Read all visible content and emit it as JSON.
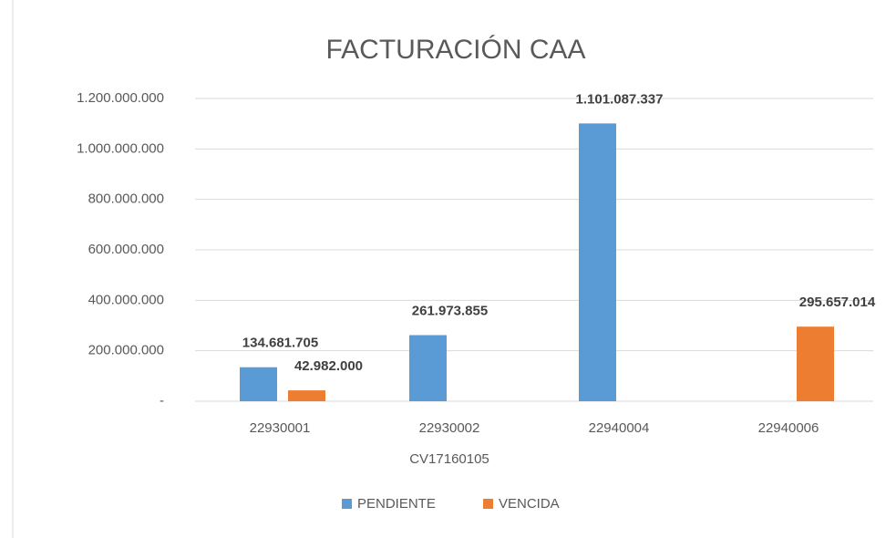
{
  "chart_data": {
    "type": "bar",
    "title": "FACTURACIÓN CAA",
    "categories": [
      "22930001",
      "22930002\nCV17160105",
      "22940004",
      "22940006"
    ],
    "series": [
      {
        "name": "PENDIENTE",
        "color": "#5b9bd5",
        "values": [
          134681705,
          261973855,
          1101087337,
          null
        ],
        "value_labels": [
          "134.681.705",
          "261.973.855",
          "1.101.087.337",
          null
        ]
      },
      {
        "name": "VENCIDA",
        "color": "#ed7d31",
        "values": [
          42982000,
          null,
          null,
          295657014
        ],
        "value_labels": [
          "42.982.000",
          null,
          null,
          "295.657.014"
        ]
      }
    ],
    "ylim": [
      0,
      1200000000
    ],
    "yticks": [
      {
        "value": 0,
        "label": "-"
      },
      {
        "value": 200000000,
        "label": "200.000.000"
      },
      {
        "value": 400000000,
        "label": "400.000.000"
      },
      {
        "value": 600000000,
        "label": "600.000.000"
      },
      {
        "value": 800000000,
        "label": "800.000.000"
      },
      {
        "value": 1000000000,
        "label": "1.000.000.000"
      },
      {
        "value": 1200000000,
        "label": "1.200.000.000"
      }
    ],
    "grid": true,
    "legend": "bottom"
  }
}
